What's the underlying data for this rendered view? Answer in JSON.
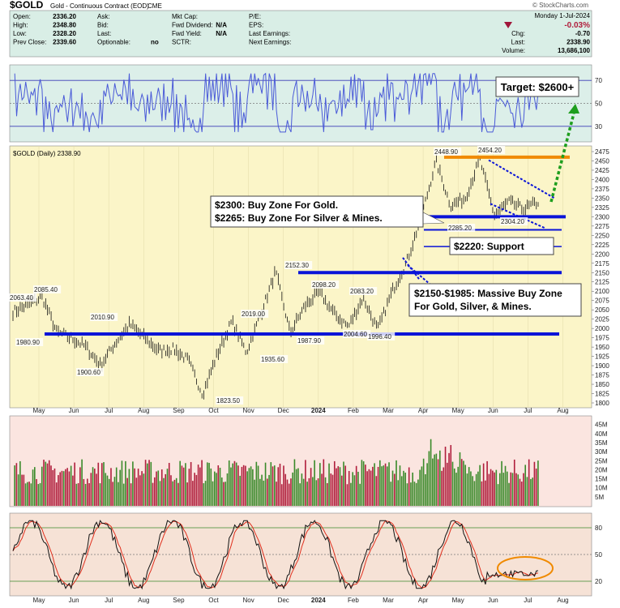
{
  "header": {
    "symbol": "$GOLD",
    "name": "Gold - Continuous Contract (EOD)",
    "exchange": "CME",
    "watermark": "© StockCharts.com",
    "date": "Monday  1-Jul-2024",
    "change_pct": "-0.03%",
    "stats": [
      {
        "label": "Open:",
        "value": "2336.20"
      },
      {
        "label": "High:",
        "value": "2348.80"
      },
      {
        "label": "Low:",
        "value": "2328.20"
      },
      {
        "label": "Prev Close:",
        "value": "2339.60"
      }
    ],
    "stats2": [
      {
        "label": "Ask:",
        "value": ""
      },
      {
        "label": "Bid:",
        "value": ""
      },
      {
        "label": "Last:",
        "value": ""
      },
      {
        "label": "Optionable:",
        "value": "no"
      }
    ],
    "stats3": [
      {
        "label": "Mkt Cap:",
        "value": ""
      },
      {
        "label": "Fwd Dividend:",
        "value": "N/A"
      },
      {
        "label": "Fwd Yield:",
        "value": "N/A"
      },
      {
        "label": "SCTR:",
        "value": ""
      }
    ],
    "stats4": [
      {
        "label": "P/E:"
      },
      {
        "label": "EPS:"
      },
      {
        "label": "Last Earnings:"
      },
      {
        "label": "Next Earnings:"
      }
    ],
    "stats5": [
      {
        "label": "Chg:",
        "value": "-0.70"
      },
      {
        "label": "Last:",
        "value": "2338.90"
      },
      {
        "label": "Volume:",
        "value": "13,686,100"
      }
    ]
  },
  "price_panel": {
    "legend": "$GOLD (Daily) 2338.90",
    "yticks": [
      2475,
      2450,
      2425,
      2400,
      2375,
      2350,
      2325,
      2300,
      2275,
      2250,
      2225,
      2200,
      2175,
      2150,
      2125,
      2100,
      2075,
      2050,
      2025,
      2000,
      1975,
      1950,
      1925,
      1900,
      1875,
      1850,
      1825,
      1800
    ],
    "ylim": [
      1800,
      2475
    ],
    "price_labels": [
      "2063.40",
      "2085.40",
      "1980.90",
      "1900.60",
      "2010.90",
      "1823.50",
      "2019.00",
      "1935.60",
      "2152.30",
      "1987.90",
      "2098.20",
      "2004.60",
      "2083.20",
      "1996.40",
      "2448.90",
      "2454.20",
      "2304.20",
      "2285.20"
    ],
    "callout_buy": [
      "$2300: Buy Zone For Gold.",
      "$2265: Buy Zone For Silver & Mines."
    ],
    "callout_support": "$2220: Support",
    "callout_massive": [
      "$2150-$1985: Massive Buy Zone",
      "For Gold, Silver, & Mines."
    ],
    "target": "Target: $2600+",
    "support_levels": [
      2460,
      2300,
      2265,
      2220,
      2150,
      1985
    ]
  },
  "rsi_panel": {
    "yticks": [
      70,
      50,
      30
    ]
  },
  "volume_panel": {
    "yticks": [
      "45M",
      "40M",
      "35M",
      "30M",
      "25M",
      "20M",
      "15M",
      "10M",
      "5M"
    ]
  },
  "stoch_panel": {
    "yticks": [
      80,
      50,
      20
    ]
  },
  "xaxis": {
    "months": [
      "May",
      "Jun",
      "Jul",
      "Aug",
      "Sep",
      "Oct",
      "Nov",
      "Dec",
      "2024",
      "Feb",
      "Mar",
      "Apr",
      "May",
      "Jun",
      "Jul",
      "Aug"
    ]
  },
  "chart_data": {
    "type": "line",
    "title": "$GOLD (Daily) 2338.90",
    "anchors": [
      {
        "x": "May",
        "y": 2045
      },
      {
        "x": "",
        "y": 2063
      },
      {
        "x": "",
        "y": 2085
      },
      {
        "x": "",
        "y": 1990
      },
      {
        "x": "Jun",
        "y": 1975
      },
      {
        "x": "",
        "y": 1950
      },
      {
        "x": "Jul",
        "y": 1901
      },
      {
        "x": "",
        "y": 1960
      },
      {
        "x": "",
        "y": 2011
      },
      {
        "x": "Aug",
        "y": 1975
      },
      {
        "x": "",
        "y": 1940
      },
      {
        "x": "Sep",
        "y": 1945
      },
      {
        "x": "",
        "y": 1915
      },
      {
        "x": "Oct",
        "y": 1824
      },
      {
        "x": "",
        "y": 1930
      },
      {
        "x": "Nov",
        "y": 2019
      },
      {
        "x": "",
        "y": 1936
      },
      {
        "x": "",
        "y": 2040
      },
      {
        "x": "Dec",
        "y": 2152
      },
      {
        "x": "",
        "y": 1988
      },
      {
        "x": "2024",
        "y": 2060
      },
      {
        "x": "",
        "y": 2098
      },
      {
        "x": "",
        "y": 2040
      },
      {
        "x": "Feb",
        "y": 2005
      },
      {
        "x": "",
        "y": 2083
      },
      {
        "x": "",
        "y": 1996
      },
      {
        "x": "Mar",
        "y": 2100
      },
      {
        "x": "",
        "y": 2180
      },
      {
        "x": "Apr",
        "y": 2300
      },
      {
        "x": "",
        "y": 2449
      },
      {
        "x": "",
        "y": 2330
      },
      {
        "x": "May",
        "y": 2350
      },
      {
        "x": "",
        "y": 2454
      },
      {
        "x": "",
        "y": 2304
      },
      {
        "x": "Jun",
        "y": 2340
      },
      {
        "x": "",
        "y": 2320
      },
      {
        "x": "Jul",
        "y": 2339
      }
    ],
    "ylim": [
      1800,
      2475
    ]
  },
  "colors": {
    "header_bg": "#d9eee6",
    "price_bg": "#fbf5c8",
    "rsi_bg": "#dcefe9",
    "vol_bg": "#fbe5e0",
    "stoch_bg": "#f6e2d6",
    "blue_line": "#0a14d8",
    "orange_line": "#f08a00",
    "green_arrow": "#1e9e1e",
    "up_bar": "#3a8a2a",
    "down_bar": "#b01e3c"
  }
}
